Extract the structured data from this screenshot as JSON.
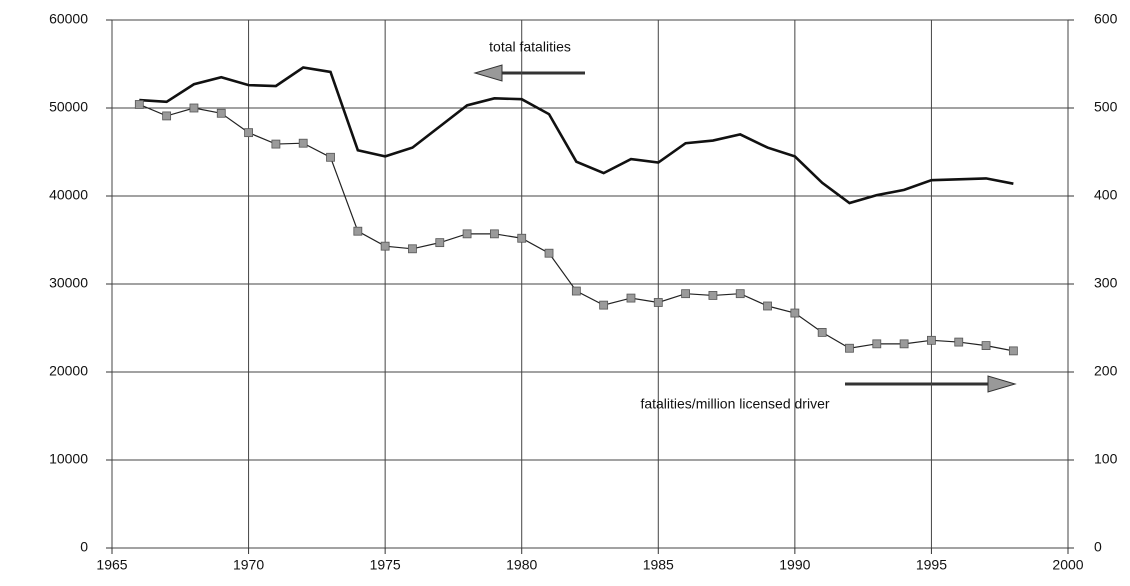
{
  "chart_data": {
    "type": "line",
    "annotations": [
      "total fatalities",
      "fatalities/million licensed driver"
    ],
    "x": [
      1966,
      1967,
      1968,
      1969,
      1970,
      1971,
      1972,
      1973,
      1974,
      1975,
      1976,
      1977,
      1978,
      1979,
      1980,
      1981,
      1982,
      1983,
      1984,
      1985,
      1986,
      1987,
      1988,
      1989,
      1990,
      1991,
      1992,
      1993,
      1994,
      1995,
      1996,
      1997,
      1998
    ],
    "series": [
      {
        "name": "total fatalities",
        "color": "#111111",
        "axis": "y",
        "values": [
          50900,
          50700,
          52700,
          53500,
          52600,
          52500,
          54600,
          54100,
          45200,
          44500,
          45500,
          47900,
          50300,
          51100,
          51000,
          49300,
          43900,
          42600,
          44200,
          43800,
          46000,
          46300,
          47000,
          45500,
          44500,
          41500,
          39200,
          40100,
          40700,
          41800,
          41900,
          42000,
          41400
        ]
      },
      {
        "name": "fatalities/million licensed driver",
        "color": "#222222",
        "marker": "square",
        "marker_color": "#9a9a9a",
        "axis": "y2",
        "values": [
          504,
          491,
          500,
          494,
          472,
          459,
          460,
          444,
          360,
          343,
          340,
          347,
          357,
          357,
          352,
          335,
          292,
          276,
          284,
          279,
          289,
          287,
          289,
          275,
          267,
          245,
          227,
          232,
          232,
          236,
          234,
          230,
          224
        ]
      }
    ],
    "xlim": [
      1965,
      2000
    ],
    "xticks": [
      1965,
      1970,
      1975,
      1980,
      1985,
      1990,
      1995,
      2000
    ],
    "ylim": [
      0,
      60000
    ],
    "yticks": [
      0,
      10000,
      20000,
      30000,
      40000,
      50000,
      60000
    ],
    "y2lim": [
      0,
      600
    ],
    "y2ticks": [
      0,
      100,
      200,
      300,
      400,
      500,
      600
    ],
    "grid": true
  }
}
